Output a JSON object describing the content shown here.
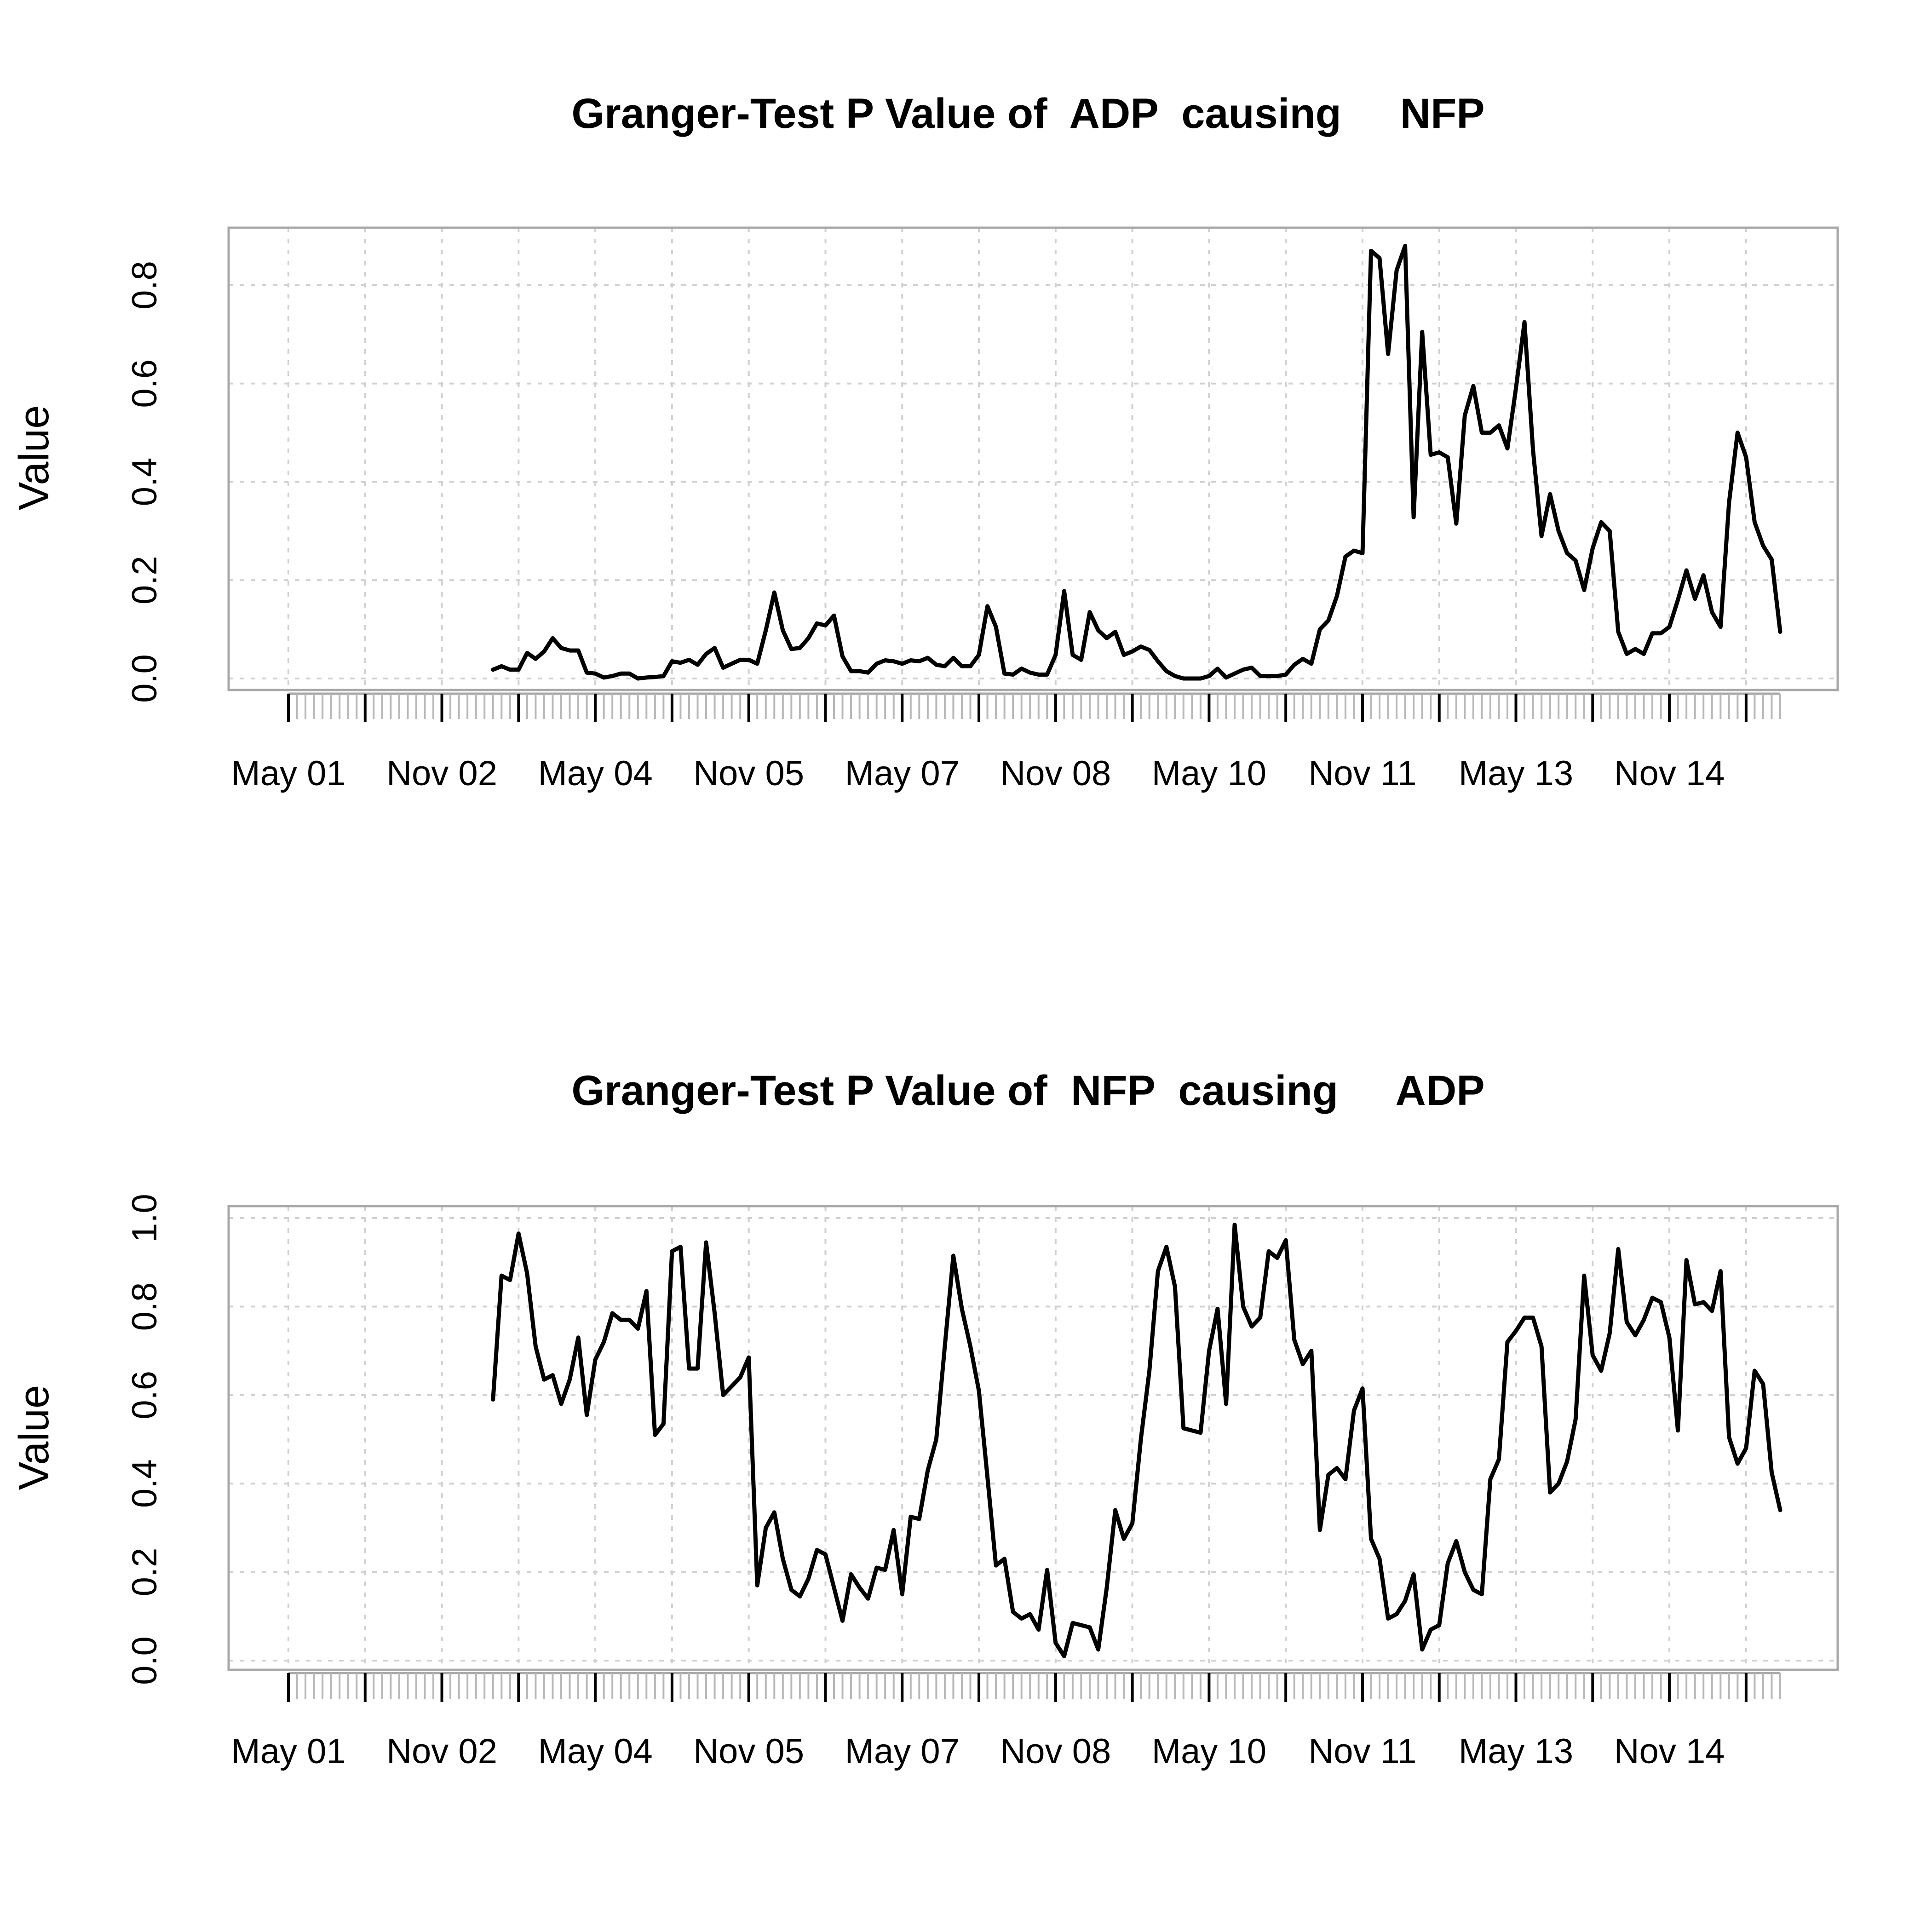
{
  "chart_data": [
    {
      "type": "line",
      "title": "Granger-Test P Value of  ADP  causing     NFP",
      "ylabel": "Value",
      "xlabel": "",
      "ylim": [
        0,
        0.9
      ],
      "yticks": [
        0.0,
        0.2,
        0.4,
        0.6,
        0.8
      ],
      "ytick_labels": [
        "0.0",
        "0.2",
        "0.4",
        "0.6",
        "0.8"
      ],
      "xlim": [
        "2000-11",
        "2016-12"
      ],
      "x_tick_labels": [
        "May 01",
        "Nov 02",
        "May 04",
        "Nov 05",
        "May 07",
        "Nov 08",
        "May 10",
        "Nov 11",
        "May 13",
        "Nov 14"
      ],
      "x_tick_positions": [
        "2001-05",
        "2002-11",
        "2004-05",
        "2005-11",
        "2007-05",
        "2008-11",
        "2010-05",
        "2011-11",
        "2013-05",
        "2014-11"
      ],
      "x_minor_ticks": "monthly",
      "grid": true,
      "series": [
        {
          "start": "2003-05",
          "frequency": "monthly",
          "values": [
            0.018,
            0.025,
            0.018,
            0.018,
            0.052,
            0.04,
            0.055,
            0.082,
            0.062,
            0.057,
            0.057,
            0.012,
            0.01,
            0.002,
            0.005,
            0.01,
            0.01,
            0.0,
            0.002,
            0.003,
            0.005,
            0.035,
            0.032,
            0.038,
            0.028,
            0.05,
            0.062,
            0.022,
            0.03,
            0.038,
            0.038,
            0.03,
            0.098,
            0.175,
            0.098,
            0.06,
            0.062,
            0.082,
            0.112,
            0.108,
            0.128,
            0.045,
            0.015,
            0.015,
            0.012,
            0.03,
            0.037,
            0.035,
            0.03,
            0.037,
            0.035,
            0.042,
            0.028,
            0.025,
            0.042,
            0.025,
            0.025,
            0.048,
            0.147,
            0.105,
            0.01,
            0.008,
            0.02,
            0.012,
            0.008,
            0.008,
            0.048,
            0.178,
            0.048,
            0.038,
            0.135,
            0.098,
            0.082,
            0.095,
            0.048,
            0.055,
            0.065,
            0.058,
            0.035,
            0.015,
            0.005,
            0.0,
            0.0,
            0.0,
            0.005,
            0.02,
            0.002,
            0.01,
            0.018,
            0.022,
            0.005,
            0.005,
            0.005,
            0.008,
            0.028,
            0.04,
            0.03,
            0.1,
            0.118,
            0.168,
            0.248,
            0.26,
            0.255,
            0.87,
            0.855,
            0.66,
            0.83,
            0.88,
            0.328,
            0.705,
            0.455,
            0.46,
            0.45,
            0.315,
            0.535,
            0.595,
            0.5,
            0.5,
            0.515,
            0.468,
            0.59,
            0.725,
            0.465,
            0.29,
            0.375,
            0.3,
            0.255,
            0.24,
            0.18,
            0.265,
            0.318,
            0.3,
            0.095,
            0.05,
            0.06,
            0.05,
            0.092,
            0.092,
            0.105,
            0.16,
            0.22,
            0.162,
            0.21,
            0.135,
            0.105,
            0.358,
            0.5,
            0.45,
            0.318,
            0.27,
            0.242,
            0.095
          ]
        }
      ]
    },
    {
      "type": "line",
      "title": "Granger-Test P Value of  NFP  causing     ADP",
      "ylabel": "Value",
      "xlabel": "",
      "ylim": [
        0,
        1.0
      ],
      "yticks": [
        0.0,
        0.2,
        0.4,
        0.6,
        0.8,
        1.0
      ],
      "ytick_labels": [
        "0.0",
        "0.2",
        "0.4",
        "0.6",
        "0.8",
        "1.0"
      ],
      "xlim": [
        "2000-11",
        "2016-12"
      ],
      "x_tick_labels": [
        "May 01",
        "Nov 02",
        "May 04",
        "Nov 05",
        "May 07",
        "Nov 08",
        "May 10",
        "Nov 11",
        "May 13",
        "Nov 14"
      ],
      "x_tick_positions": [
        "2001-05",
        "2002-11",
        "2004-05",
        "2005-11",
        "2007-05",
        "2008-11",
        "2010-05",
        "2011-11",
        "2013-05",
        "2014-11"
      ],
      "x_minor_ticks": "monthly",
      "grid": true,
      "series": [
        {
          "start": "2003-05",
          "frequency": "monthly",
          "values": [
            0.59,
            0.87,
            0.86,
            0.965,
            0.875,
            0.71,
            0.635,
            0.645,
            0.58,
            0.635,
            0.73,
            0.555,
            0.68,
            0.72,
            0.785,
            0.77,
            0.77,
            0.75,
            0.835,
            0.51,
            0.535,
            0.925,
            0.935,
            0.66,
            0.66,
            0.945,
            0.785,
            0.6,
            0.62,
            0.64,
            0.685,
            0.17,
            0.3,
            0.335,
            0.23,
            0.16,
            0.145,
            0.185,
            0.25,
            0.24,
            0.165,
            0.09,
            0.195,
            0.165,
            0.14,
            0.21,
            0.205,
            0.295,
            0.15,
            0.325,
            0.32,
            0.43,
            0.5,
            0.71,
            0.915,
            0.795,
            0.71,
            0.61,
            0.415,
            0.215,
            0.23,
            0.11,
            0.095,
            0.105,
            0.07,
            0.205,
            0.04,
            0.01,
            0.085,
            0.08,
            0.075,
            0.025,
            0.165,
            0.34,
            0.275,
            0.31,
            0.5,
            0.655,
            0.88,
            0.935,
            0.845,
            0.525,
            0.52,
            0.515,
            0.7,
            0.795,
            0.58,
            0.985,
            0.8,
            0.755,
            0.775,
            0.925,
            0.91,
            0.95,
            0.725,
            0.67,
            0.7,
            0.295,
            0.42,
            0.435,
            0.41,
            0.565,
            0.615,
            0.275,
            0.23,
            0.095,
            0.105,
            0.135,
            0.195,
            0.025,
            0.07,
            0.08,
            0.22,
            0.27,
            0.2,
            0.16,
            0.15,
            0.41,
            0.455,
            0.72,
            0.745,
            0.775,
            0.775,
            0.71,
            0.38,
            0.4,
            0.45,
            0.545,
            0.87,
            0.69,
            0.655,
            0.74,
            0.93,
            0.765,
            0.735,
            0.77,
            0.82,
            0.81,
            0.73,
            0.52,
            0.905,
            0.805,
            0.81,
            0.79,
            0.88,
            0.505,
            0.445,
            0.48,
            0.655,
            0.625,
            0.425,
            0.34
          ]
        }
      ]
    }
  ]
}
